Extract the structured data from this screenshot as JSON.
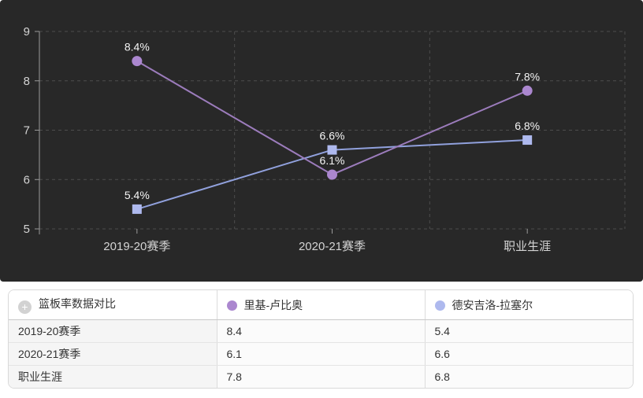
{
  "chart_data": {
    "type": "line",
    "title": "",
    "xlabel": "",
    "ylabel": "",
    "categories": [
      "2019-20赛季",
      "2020-21赛季",
      "职业生涯"
    ],
    "series": [
      {
        "name": "里基-卢比奥",
        "values": [
          8.4,
          6.1,
          7.8
        ],
        "marker": "circle",
        "marker_color": "#ab87cf",
        "line_color": "#9c7cbc"
      },
      {
        "name": "德安吉洛-拉塞尔",
        "values": [
          5.4,
          6.6,
          6.8
        ],
        "marker": "square",
        "marker_color": "#aeb9ee",
        "line_color": "#91a1dd"
      }
    ],
    "ylim": [
      5,
      9
    ],
    "yticks": [
      9,
      8,
      7,
      6,
      5
    ],
    "value_suffix": "%",
    "grid": "dashed",
    "legend_position": "table-header",
    "colors": {
      "background": "#282828",
      "gridline": "#4d4d4d",
      "axis": "#9a9a9a",
      "tick_label": "#d4d4d4",
      "data_label": "#f5f5f5"
    }
  },
  "table": {
    "title": "篮板率数据对比"
  }
}
